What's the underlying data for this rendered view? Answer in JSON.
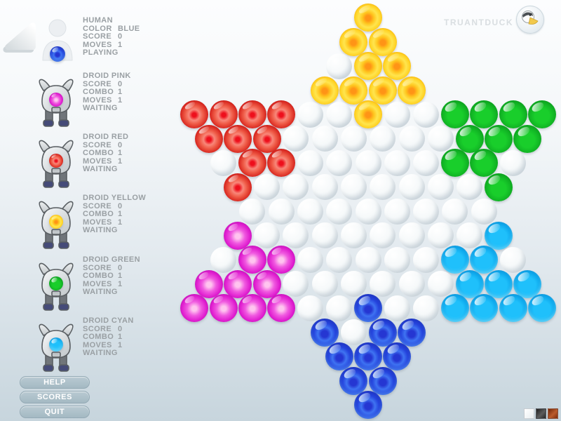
{
  "logo": {
    "text": "TRUANTDUCK",
    "badge_icon": "duck-logo"
  },
  "players": [
    {
      "name": "HUMAN",
      "kind": "human",
      "color_key": "B",
      "current_turn": true,
      "stats": [
        {
          "label": "COLOR",
          "value": "BLUE"
        },
        {
          "label": "SCORE",
          "value": "0"
        },
        {
          "label": "MOVES",
          "value": "1"
        }
      ],
      "status": "PLAYING"
    },
    {
      "name": "DROID PINK",
      "kind": "droid",
      "color_key": "P",
      "current_turn": false,
      "stats": [
        {
          "label": "SCORE",
          "value": "0"
        },
        {
          "label": "COMBO",
          "value": "1"
        },
        {
          "label": "MOVES",
          "value": "1"
        }
      ],
      "status": "WAITING"
    },
    {
      "name": "DROID RED",
      "kind": "droid",
      "color_key": "R",
      "current_turn": false,
      "stats": [
        {
          "label": "SCORE",
          "value": "0"
        },
        {
          "label": "COMBO",
          "value": "1"
        },
        {
          "label": "MOVES",
          "value": "1"
        }
      ],
      "status": "WAITING"
    },
    {
      "name": "DROID YELLOW",
      "kind": "droid",
      "color_key": "Y",
      "current_turn": false,
      "stats": [
        {
          "label": "SCORE",
          "value": "0"
        },
        {
          "label": "COMBO",
          "value": "1"
        },
        {
          "label": "MOVES",
          "value": "1"
        }
      ],
      "status": "WAITING"
    },
    {
      "name": "DROID GREEN",
      "kind": "droid",
      "color_key": "G",
      "current_turn": false,
      "stats": [
        {
          "label": "SCORE",
          "value": "0"
        },
        {
          "label": "COMBO",
          "value": "1"
        },
        {
          "label": "MOVES",
          "value": "1"
        }
      ],
      "status": "WAITING"
    },
    {
      "name": "DROID CYAN",
      "kind": "droid",
      "color_key": "C",
      "current_turn": false,
      "stats": [
        {
          "label": "SCORE",
          "value": "0"
        },
        {
          "label": "COMBO",
          "value": "1"
        },
        {
          "label": "MOVES",
          "value": "1"
        }
      ],
      "status": "WAITING"
    }
  ],
  "menu": [
    {
      "label": "HELP"
    },
    {
      "label": "SCORES"
    },
    {
      "label": "QUIT"
    }
  ],
  "board": {
    "rows": [
      "Y",
      "YY",
      ".YY",
      "YYYY",
      "RRRR..Y..GGGG",
      "RRR......GGG",
      ".RR.....GG.",
      "R........G",
      ".........",
      "P........C",
      ".PP.....CC.",
      "PPP......CCC",
      "PPPP..B..CCCC",
      "B.BB",
      "BBB",
      "BB",
      "B"
    ],
    "legend": {
      "Y": "yellow",
      "R": "red",
      "G": "green",
      "P": "pink",
      "C": "cyan",
      "B": "blue",
      ".": "empty"
    }
  },
  "marble_colors": {
    "yellow": "#f5b800",
    "red": "#d42a10",
    "green": "#18b828",
    "pink": "#e020d8",
    "cyan": "#1fb4f2",
    "blue": "#2840d8",
    "empty": "#e9eef1"
  },
  "themes": [
    {
      "name": "light",
      "color": "#f0f3f4"
    },
    {
      "name": "dark",
      "color": "#3c3c3c"
    },
    {
      "name": "rust",
      "color": "#a84e22"
    }
  ]
}
